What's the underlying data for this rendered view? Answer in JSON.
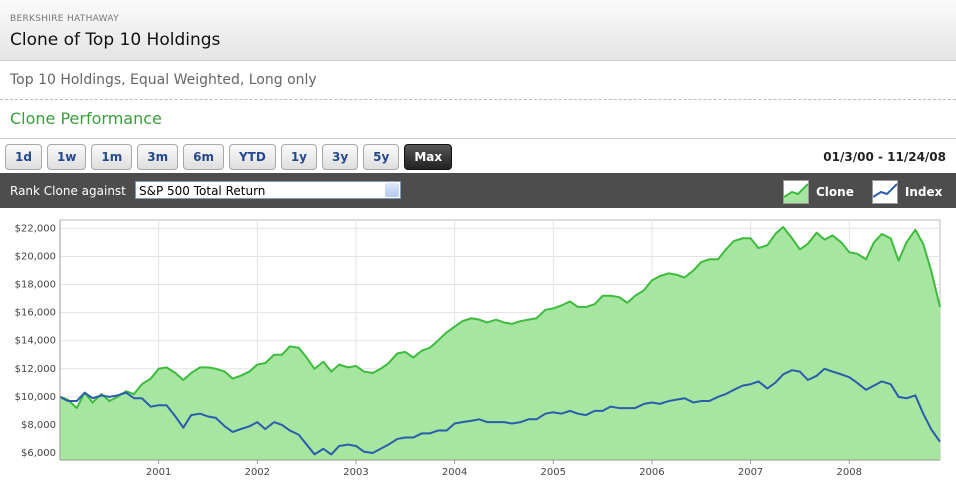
{
  "header": {
    "company": "BERKSHIRE HATHAWAY",
    "title": "Clone of Top 10 Holdings"
  },
  "description": "Top 10 Holdings, Equal Weighted, Long only",
  "section_title": "Clone Performance",
  "range_buttons": [
    "1d",
    "1w",
    "1m",
    "3m",
    "6m",
    "YTD",
    "1y",
    "3y",
    "5y",
    "Max"
  ],
  "date_range": "01/3/00 - 11/24/08",
  "rank_label": "Rank Clone against",
  "rank_select": "S&P 500 Total Return",
  "chart_data": {
    "type": "area",
    "x": [
      2000,
      2000.08,
      2000.17,
      2000.25,
      2000.33,
      2000.42,
      2000.5,
      2000.58,
      2000.67,
      2000.75,
      2000.83,
      2000.92,
      2001,
      2001.08,
      2001.17,
      2001.25,
      2001.33,
      2001.42,
      2001.5,
      2001.58,
      2001.67,
      2001.75,
      2001.83,
      2001.92,
      2002,
      2002.08,
      2002.17,
      2002.25,
      2002.33,
      2002.42,
      2002.5,
      2002.58,
      2002.67,
      2002.75,
      2002.83,
      2002.92,
      2003,
      2003.08,
      2003.17,
      2003.25,
      2003.33,
      2003.42,
      2003.5,
      2003.58,
      2003.67,
      2003.75,
      2003.83,
      2003.92,
      2004,
      2004.08,
      2004.17,
      2004.25,
      2004.33,
      2004.42,
      2004.5,
      2004.58,
      2004.67,
      2004.75,
      2004.83,
      2004.92,
      2005,
      2005.08,
      2005.17,
      2005.25,
      2005.33,
      2005.42,
      2005.5,
      2005.58,
      2005.67,
      2005.75,
      2005.83,
      2005.92,
      2006,
      2006.08,
      2006.17,
      2006.25,
      2006.33,
      2006.42,
      2006.5,
      2006.58,
      2006.67,
      2006.75,
      2006.83,
      2006.92,
      2007,
      2007.08,
      2007.17,
      2007.25,
      2007.33,
      2007.42,
      2007.5,
      2007.58,
      2007.67,
      2007.75,
      2007.83,
      2007.92,
      2008,
      2008.08,
      2008.17,
      2008.25,
      2008.33,
      2008.42,
      2008.5,
      2008.58,
      2008.67,
      2008.75,
      2008.83,
      2008.92
    ],
    "series": [
      {
        "name": "Clone",
        "color": "#3dbb3d",
        "fill": "#a6e6a0",
        "values": [
          10000,
          9800,
          9200,
          10300,
          9600,
          10200,
          9700,
          10000,
          10400,
          10200,
          10900,
          11300,
          12000,
          12100,
          11700,
          11200,
          11700,
          12100,
          12100,
          12000,
          11800,
          11300,
          11500,
          11800,
          12300,
          12400,
          13000,
          13000,
          13600,
          13500,
          12800,
          12000,
          12500,
          11800,
          12300,
          12100,
          12200,
          11800,
          11700,
          12000,
          12400,
          13100,
          13200,
          12800,
          13300,
          13500,
          14000,
          14600,
          15000,
          15400,
          15600,
          15500,
          15300,
          15500,
          15300,
          15200,
          15400,
          15500,
          15600,
          16200,
          16300,
          16500,
          16800,
          16400,
          16400,
          16600,
          17200,
          17200,
          17100,
          16700,
          17200,
          17600,
          18300,
          18600,
          18800,
          18700,
          18500,
          19000,
          19600,
          19800,
          19800,
          20500,
          21100,
          21300,
          21300,
          20600,
          20800,
          21600,
          22100,
          21300,
          20500,
          20900,
          21700,
          21200,
          21500,
          21000,
          20300,
          20200,
          19800,
          21000,
          21600,
          21300,
          19700,
          21000,
          21900,
          20900,
          19000,
          16400
        ]
      },
      {
        "name": "Index",
        "color": "#2b5cad",
        "values": [
          10000,
          9700,
          9700,
          10300,
          9900,
          10100,
          10000,
          10100,
          10300,
          9900,
          9900,
          9300,
          9400,
          9400,
          8600,
          7800,
          8700,
          8800,
          8600,
          8500,
          7900,
          7500,
          7700,
          7900,
          8200,
          7700,
          8200,
          8000,
          7600,
          7300,
          6600,
          5900,
          6300,
          5900,
          6500,
          6600,
          6500,
          6100,
          6000,
          6300,
          6600,
          7000,
          7100,
          7100,
          7400,
          7400,
          7600,
          7600,
          8100,
          8200,
          8300,
          8400,
          8200,
          8200,
          8200,
          8100,
          8200,
          8400,
          8400,
          8800,
          8900,
          8800,
          9000,
          8800,
          8700,
          9000,
          9000,
          9300,
          9200,
          9200,
          9200,
          9500,
          9600,
          9500,
          9700,
          9800,
          9900,
          9600,
          9700,
          9700,
          10000,
          10200,
          10500,
          10800,
          10900,
          11100,
          10600,
          11000,
          11600,
          11900,
          11800,
          11200,
          11500,
          12000,
          11800,
          11600,
          11400,
          11000,
          10500,
          10800,
          11100,
          10900,
          10000,
          9900,
          10100,
          8800,
          7700,
          6800
        ]
      }
    ],
    "xlim": [
      2000,
      2008.92
    ],
    "xticks": [
      2001,
      2002,
      2003,
      2004,
      2005,
      2006,
      2007,
      2008
    ],
    "ylim": [
      5500,
      22600
    ],
    "yticks": [
      {
        "value": 6000,
        "label": "$6,000"
      },
      {
        "value": 8000,
        "label": "$8,000"
      },
      {
        "value": 10000,
        "label": "$10,000"
      },
      {
        "value": 12000,
        "label": "$12,000"
      },
      {
        "value": 14000,
        "label": "$14,000"
      },
      {
        "value": 16000,
        "label": "$16,000"
      },
      {
        "value": 18000,
        "label": "$18,000"
      },
      {
        "value": 20000,
        "label": "$20,000"
      },
      {
        "value": 22000,
        "label": "$22,000"
      }
    ],
    "grid": true
  }
}
